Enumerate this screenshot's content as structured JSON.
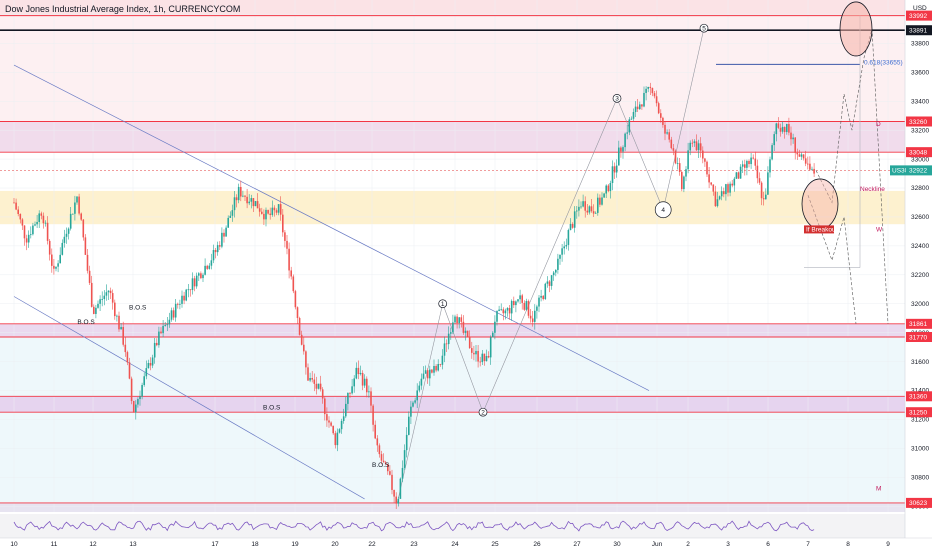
{
  "chart_data": {
    "type": "candlestick",
    "title": "Dow Jones Industrial Average Index, 1h, CURRENCYCOM",
    "currency": "USD",
    "symbol_tag": "US30",
    "last_price": 32922,
    "y_ticks": [
      34000,
      33800,
      33600,
      33400,
      33200,
      33000,
      32800,
      32600,
      32400,
      32200,
      32000,
      31800,
      31600,
      31400,
      31200,
      31000,
      30800,
      30600
    ],
    "ylim": [
      30560,
      34100
    ],
    "x_ticks": [
      "10",
      "11",
      "12",
      "13",
      "17",
      "18",
      "19",
      "20",
      "22",
      "23",
      "24",
      "25",
      "26",
      "27",
      "30",
      "Jun",
      "2",
      "3",
      "6",
      "7",
      "8",
      "9"
    ],
    "x_index": [
      0,
      1,
      2,
      3,
      4,
      5,
      6,
      7,
      8,
      9,
      10,
      11,
      12,
      13,
      14,
      15,
      16,
      17,
      18,
      19,
      20,
      21
    ],
    "price_tags": [
      {
        "value": 33992,
        "color": "#f23645"
      },
      {
        "value": 33891,
        "color": "#131722"
      },
      {
        "value": 33260,
        "color": "#f23645"
      },
      {
        "value": 33048,
        "color": "#f23645"
      },
      {
        "value": 31861,
        "color": "#f23645"
      },
      {
        "value": 31770,
        "color": "#f23645"
      },
      {
        "value": 31360,
        "color": "#f23645"
      },
      {
        "value": 31250,
        "color": "#f23645"
      },
      {
        "value": 30623,
        "color": "#f23645"
      }
    ],
    "zones": [
      {
        "from": 33992,
        "to": 34100,
        "color": "#fbe3e6"
      },
      {
        "from": 33048,
        "to": 33260,
        "color": "#f1dcec"
      },
      {
        "from": 32550,
        "to": 32780,
        "color": "#fdf1cf"
      },
      {
        "from": 31770,
        "to": 31861,
        "color": "#ead9ef"
      },
      {
        "from": 31250,
        "to": 31360,
        "color": "#e6d4ef"
      },
      {
        "from": 30560,
        "to": 30623,
        "color": "#e7e4f1"
      }
    ],
    "candle_path": [
      [
        0,
        32700
      ],
      [
        0.3,
        32450
      ],
      [
        0.7,
        32650
      ],
      [
        1,
        32200
      ],
      [
        1.3,
        32500
      ],
      [
        1.6,
        32750
      ],
      [
        2,
        31950
      ],
      [
        2.4,
        32100
      ],
      [
        2.8,
        31700
      ],
      [
        3,
        31250
      ],
      [
        3.3,
        31750
      ],
      [
        3.6,
        32050
      ],
      [
        4,
        32350
      ],
      [
        4.3,
        32550
      ],
      [
        4.6,
        32780
      ],
      [
        5,
        32700
      ],
      [
        5.3,
        32600
      ],
      [
        5.6,
        32650
      ],
      [
        5.9,
        32200
      ],
      [
        6.1,
        31850
      ],
      [
        6.3,
        31500
      ],
      [
        6.6,
        31400
      ],
      [
        7,
        31050
      ],
      [
        7.3,
        31300
      ],
      [
        7.6,
        31550
      ],
      [
        7.9,
        31400
      ],
      [
        8.1,
        31000
      ],
      [
        8.4,
        30800
      ],
      [
        8.6,
        30620
      ],
      [
        8.9,
        31250
      ],
      [
        9.2,
        31500
      ],
      [
        9.6,
        31550
      ],
      [
        10,
        31950
      ],
      [
        10.2,
        31800
      ],
      [
        10.5,
        31650
      ],
      [
        10.8,
        31600
      ],
      [
        11,
        31900
      ],
      [
        11.3,
        31950
      ],
      [
        11.6,
        32050
      ],
      [
        11.9,
        31900
      ],
      [
        12.2,
        32100
      ],
      [
        12.5,
        32250
      ],
      [
        12.8,
        32500
      ],
      [
        13.1,
        32700
      ],
      [
        13.4,
        32650
      ],
      [
        13.7,
        32750
      ],
      [
        14,
        33000
      ],
      [
        14.3,
        33250
      ],
      [
        14.6,
        33400
      ],
      [
        14.9,
        33500
      ],
      [
        15.2,
        33200
      ],
      [
        15.5,
        33100
      ],
      [
        15.8,
        32800
      ],
      [
        16.1,
        33150
      ],
      [
        16.4,
        33000
      ],
      [
        16.7,
        32700
      ],
      [
        17,
        32800
      ],
      [
        17.3,
        32900
      ],
      [
        17.6,
        33000
      ],
      [
        17.9,
        32700
      ],
      [
        18.2,
        33250
      ],
      [
        18.5,
        33200
      ],
      [
        18.8,
        33000
      ],
      [
        19.1,
        32900
      ],
      [
        19.2,
        32922
      ]
    ],
    "annotations": [
      {
        "text": "B.O.S",
        "x": 1.6,
        "y": 31860,
        "color": "#131722"
      },
      {
        "text": "B.O.S",
        "x": 2.9,
        "y": 31960,
        "color": "#131722"
      },
      {
        "text": "B.O.S",
        "x": 5.2,
        "y": 31270,
        "color": "#131722"
      },
      {
        "text": "B.O.S",
        "x": 8.0,
        "y": 30870,
        "color": "#131722"
      },
      {
        "text": "0.618(33655)",
        "x": 20.4,
        "y": 33655,
        "color": "#3d6dd1"
      },
      {
        "text": "Neckline",
        "x": 20.3,
        "y": 32780,
        "color": "#c2185b"
      },
      {
        "text": "W",
        "x": 20.7,
        "y": 32500,
        "color": "#c2185b"
      },
      {
        "text": "D",
        "x": 20.7,
        "y": 33230,
        "color": "#c2185b"
      },
      {
        "text": "M",
        "x": 20.7,
        "y": 30710,
        "color": "#c2185b"
      }
    ],
    "breakout_label": "If Breakout",
    "waves": [
      {
        "label": "1",
        "x": 9.7,
        "y": 32000
      },
      {
        "label": "2",
        "x": 10.7,
        "y": 31250
      },
      {
        "label": "3",
        "x": 14.0,
        "y": 33420
      },
      {
        "label": "4",
        "x": 15.2,
        "y": 32650
      },
      {
        "label": "5",
        "x": 16.4,
        "y": 33905
      }
    ],
    "grid": true,
    "legend": "none"
  }
}
